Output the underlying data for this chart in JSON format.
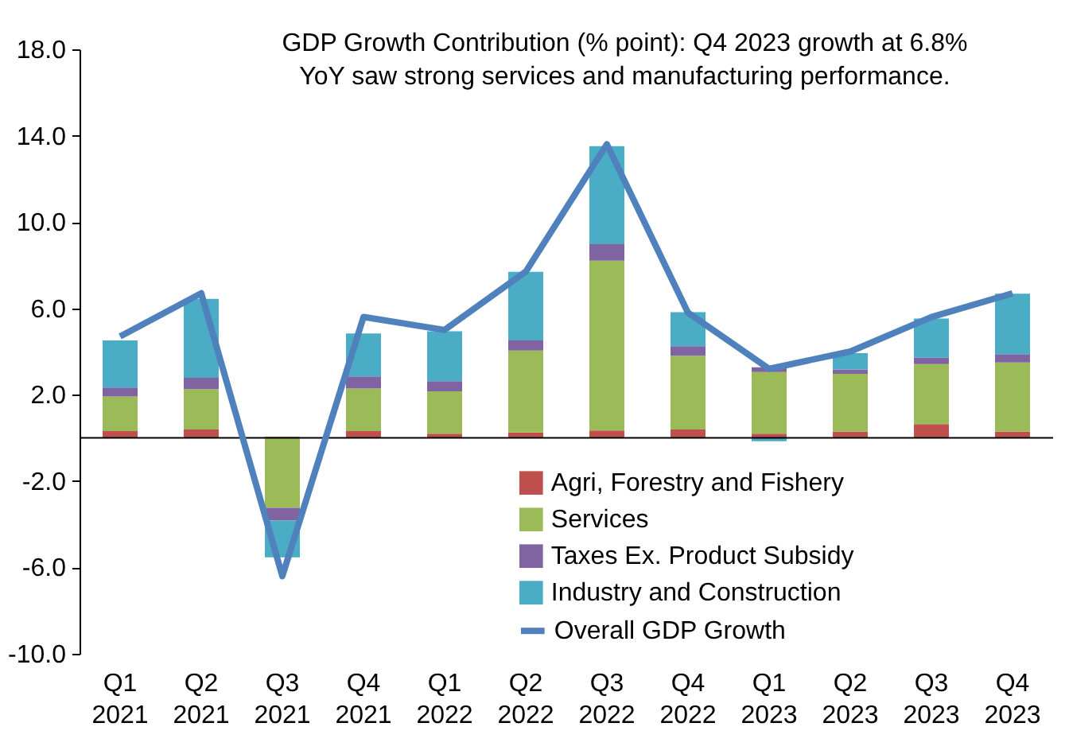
{
  "chart_data": {
    "type": "bar",
    "stacked": true,
    "title": "GDP Growth Contribution (% point): Q4 2023 growth at 6.8%\nYoY saw strong services and manufacturing performance.",
    "categories": [
      "Q1 2021",
      "Q2 2021",
      "Q3 2021",
      "Q4 2021",
      "Q1 2022",
      "Q2 2022",
      "Q3 2022",
      "Q4 2022",
      "Q1 2023",
      "Q2 2023",
      "Q3 2023",
      "Q4 2023"
    ],
    "series": [
      {
        "name": "Agri, Forestry and Fishery",
        "color": "#c0504d",
        "values": [
          0.32,
          0.39,
          0.05,
          0.32,
          0.2,
          0.25,
          0.34,
          0.39,
          0.2,
          0.29,
          0.64,
          0.29
        ]
      },
      {
        "name": "Services",
        "color": "#9bbb59",
        "values": [
          1.6,
          1.87,
          -3.24,
          1.97,
          1.96,
          3.8,
          7.87,
          3.42,
          2.85,
          2.68,
          2.78,
          3.2
        ]
      },
      {
        "name": "Taxes Ex. Product Subsidy",
        "color": "#8064a2",
        "values": [
          0.41,
          0.52,
          -0.59,
          0.56,
          0.47,
          0.47,
          0.76,
          0.44,
          0.22,
          0.2,
          0.29,
          0.39
        ]
      },
      {
        "name": "Industry and Construction",
        "color": "#4bacc6",
        "values": [
          2.19,
          3.66,
          -1.7,
          1.99,
          2.31,
          3.17,
          4.54,
          1.57,
          -0.15,
          0.76,
          1.82,
          2.8
        ]
      },
      {
        "name": "Overall GDP Growth",
        "type": "line",
        "color": "#4f81bd",
        "values": [
          4.7,
          6.7,
          -6.4,
          5.6,
          5.0,
          7.7,
          13.6,
          5.8,
          3.2,
          4.0,
          5.6,
          6.7
        ]
      }
    ],
    "ylim": [
      -10,
      18
    ],
    "yticks": [
      {
        "value": -10,
        "label": "-10.0"
      },
      {
        "value": -6,
        "label": "-6.0"
      },
      {
        "value": -2,
        "label": "-2.0"
      },
      {
        "value": 2,
        "label": "2.0"
      },
      {
        "value": 6,
        "label": "6.0"
      },
      {
        "value": 10,
        "label": "10.0"
      },
      {
        "value": 14,
        "label": "14.0"
      },
      {
        "value": 18,
        "label": "18.0"
      }
    ],
    "grid": false,
    "legend": "bottom right"
  }
}
